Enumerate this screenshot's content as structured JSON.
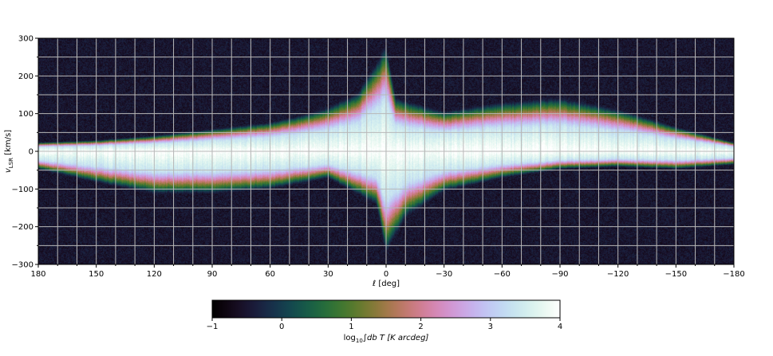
{
  "chart_data": {
    "type": "heatmap",
    "title": "",
    "xlabel": "ℓ [deg]",
    "ylabel": "v_LSR [km/s]",
    "ylabel_main": "v",
    "ylabel_sub": "LSR",
    "ylabel_unit": " [km/s]",
    "xlim": [
      180,
      -180
    ],
    "ylim": [
      -300,
      300
    ],
    "x_ticks": [
      180,
      150,
      120,
      90,
      60,
      30,
      0,
      -30,
      -60,
      -90,
      -120,
      -150,
      -180
    ],
    "x_tick_labels": [
      "180",
      "150",
      "120",
      "90",
      "60",
      "30",
      "0",
      "−30",
      "−60",
      "−90",
      "−120",
      "−150",
      "−180"
    ],
    "x_minor_step": 10,
    "y_ticks": [
      300,
      200,
      100,
      0,
      -100,
      -200,
      -300
    ],
    "y_tick_labels": [
      "300",
      "200",
      "100",
      "0",
      "−100",
      "−200",
      "−300"
    ],
    "y_minor_step": 50,
    "grid": true,
    "colormap": "cubehelix",
    "colorbar": {
      "label": "log₁₀ ∫ db T [K arcdeg]",
      "label_prefix": "log",
      "label_sub": "10",
      "label_rest": "∫db T [K arcdeg]",
      "range": [
        -1,
        4
      ],
      "ticks": [
        -1,
        0,
        1,
        2,
        3,
        4
      ],
      "tick_labels": [
        "−1",
        "0",
        "1",
        "2",
        "3",
        "4"
      ]
    },
    "features": {
      "ridge_velocity_kms": 0,
      "peak_log10_intensity": 4,
      "background_log10_intensity": -0.5,
      "upper_envelope_kms": [
        [
          180,
          20
        ],
        [
          150,
          25
        ],
        [
          120,
          35
        ],
        [
          90,
          50
        ],
        [
          60,
          65
        ],
        [
          40,
          85
        ],
        [
          30,
          100
        ],
        [
          15,
          130
        ],
        [
          5,
          200
        ],
        [
          0,
          240
        ],
        [
          -5,
          120
        ],
        [
          -30,
          90
        ],
        [
          -60,
          110
        ],
        [
          -90,
          120
        ],
        [
          -120,
          95
        ],
        [
          -150,
          55
        ],
        [
          -180,
          20
        ]
      ],
      "lower_envelope_kms": [
        [
          180,
          -40
        ],
        [
          150,
          -70
        ],
        [
          120,
          -95
        ],
        [
          90,
          -95
        ],
        [
          60,
          -85
        ],
        [
          30,
          -60
        ],
        [
          5,
          -120
        ],
        [
          0,
          -230
        ],
        [
          -10,
          -150
        ],
        [
          -20,
          -120
        ],
        [
          -30,
          -90
        ],
        [
          -60,
          -60
        ],
        [
          -90,
          -40
        ],
        [
          -120,
          -35
        ],
        [
          -150,
          -40
        ],
        [
          -180,
          -30
        ]
      ]
    }
  }
}
